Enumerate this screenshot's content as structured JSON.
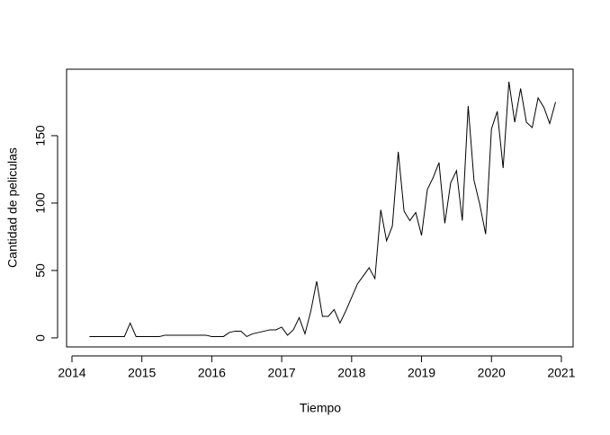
{
  "chart_data": {
    "type": "line",
    "xlabel": "Tiempo",
    "ylabel": "Cantidad de peliculas",
    "x": [
      2014.25,
      2014.333,
      2014.417,
      2014.5,
      2014.583,
      2014.667,
      2014.75,
      2014.833,
      2014.917,
      2015,
      2015.083,
      2015.167,
      2015.25,
      2015.333,
      2015.417,
      2015.5,
      2015.583,
      2015.667,
      2015.75,
      2015.833,
      2015.917,
      2016,
      2016.083,
      2016.167,
      2016.25,
      2016.333,
      2016.417,
      2016.5,
      2016.583,
      2016.667,
      2016.75,
      2016.833,
      2016.917,
      2017,
      2017.083,
      2017.167,
      2017.25,
      2017.333,
      2017.417,
      2017.5,
      2017.583,
      2017.667,
      2017.75,
      2017.833,
      2017.917,
      2018,
      2018.083,
      2018.167,
      2018.25,
      2018.333,
      2018.417,
      2018.5,
      2018.583,
      2018.667,
      2018.75,
      2018.833,
      2018.917,
      2019,
      2019.083,
      2019.167,
      2019.25,
      2019.333,
      2019.417,
      2019.5,
      2019.583,
      2019.667,
      2019.75,
      2019.833,
      2019.917,
      2020,
      2020.083,
      2020.167,
      2020.25,
      2020.333,
      2020.417,
      2020.5,
      2020.583,
      2020.667,
      2020.75,
      2020.833,
      2020.917
    ],
    "values": [
      1,
      1,
      1,
      1,
      1,
      1,
      1,
      11,
      1,
      1,
      1,
      1,
      1,
      2,
      2,
      2,
      2,
      2,
      2,
      2,
      2,
      1,
      1,
      1,
      4,
      5,
      5,
      1,
      3,
      4,
      5,
      6,
      6,
      8,
      2,
      6,
      15,
      3,
      20,
      42,
      16,
      16,
      21,
      11,
      20,
      30,
      40,
      46,
      52,
      44,
      95,
      72,
      83,
      138,
      94,
      87,
      93,
      76,
      110,
      119,
      130,
      85,
      115,
      124,
      87,
      172,
      117,
      99,
      77,
      155,
      168,
      126,
      190,
      160,
      185,
      160,
      156,
      178,
      171,
      159,
      175
    ],
    "color": "#000000",
    "xlim": [
      2013.923,
      2021.168
    ],
    "xticks": [
      2014,
      2015,
      2016,
      2017,
      2018,
      2019,
      2020,
      2021
    ],
    "ylim": [
      -6.7,
      199.3
    ],
    "yticks": [
      0,
      50,
      100,
      150
    ],
    "grid": false
  }
}
